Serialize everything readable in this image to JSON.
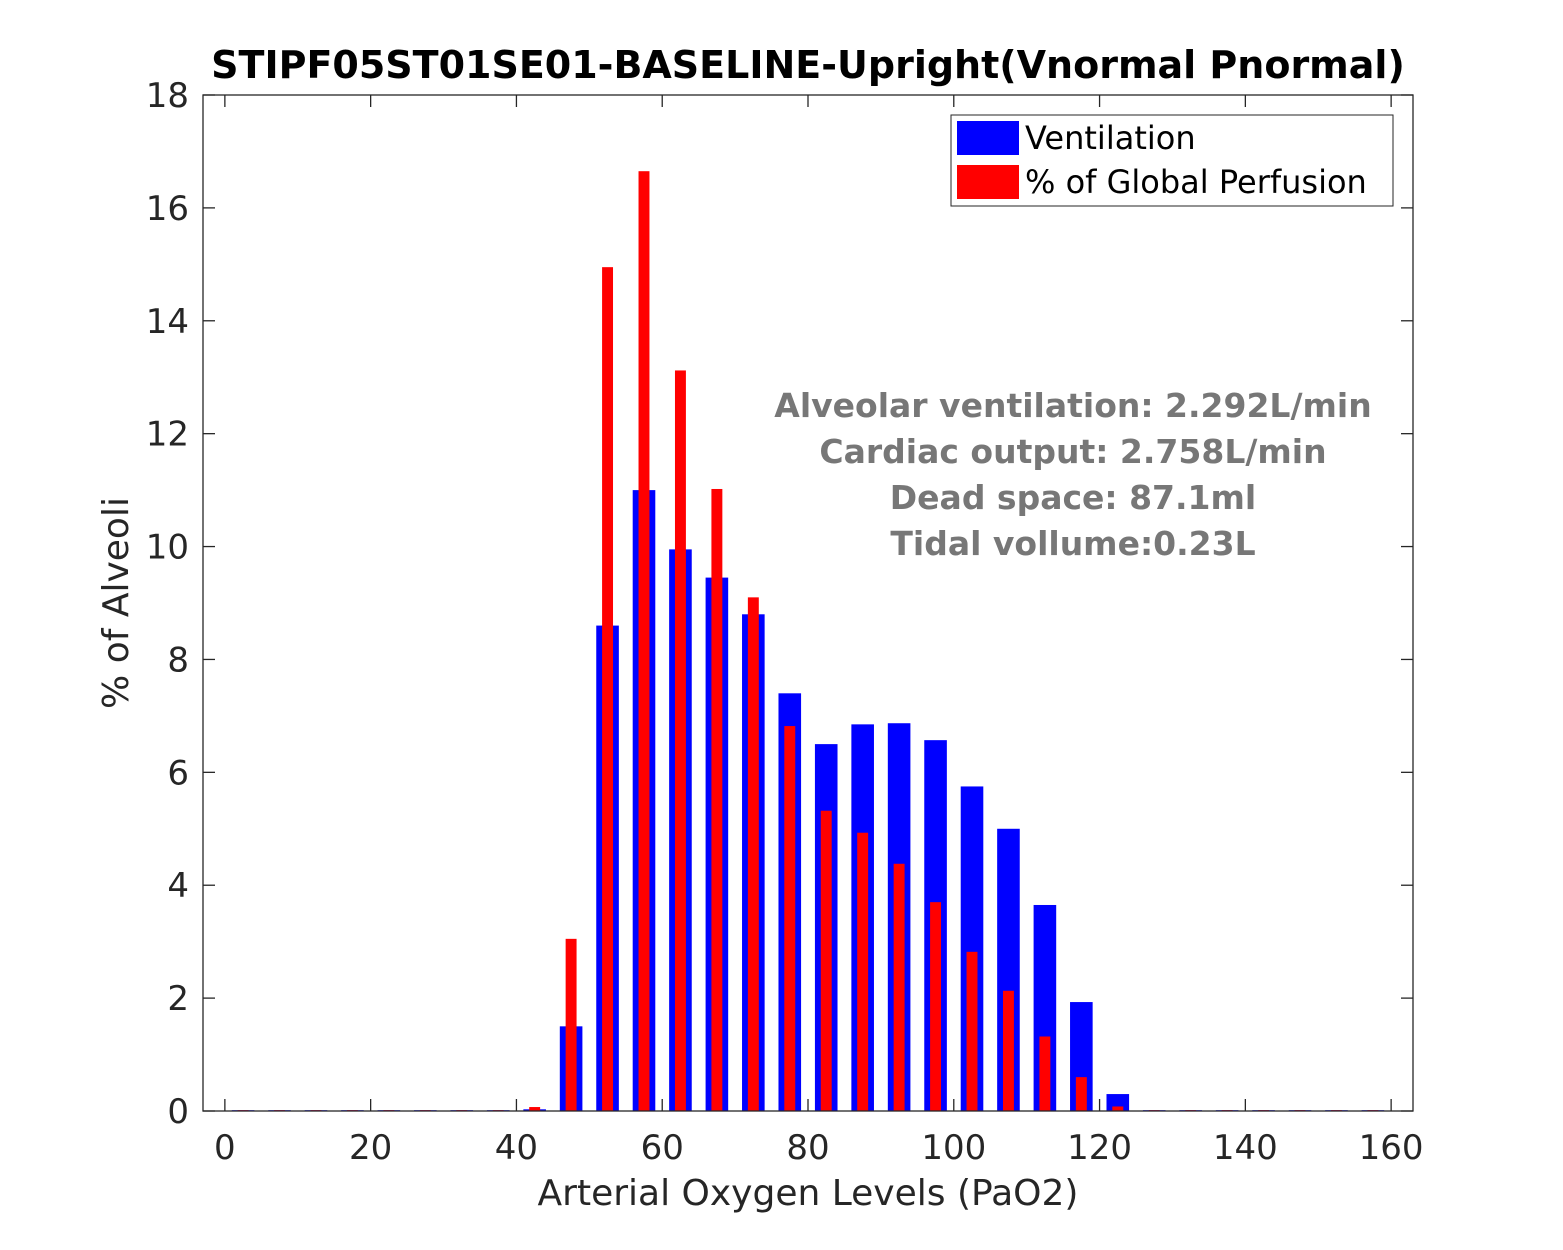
{
  "chart_data": {
    "type": "bar",
    "title": "STIPF05ST01SE01-BASELINE-Upright(Vnormal Pnormal)",
    "xlabel": "Arterial Oxygen Levels (PaO2)",
    "ylabel": "% of Alveoli",
    "xlim": [
      -3,
      163
    ],
    "ylim": [
      0,
      18
    ],
    "xticks": [
      0,
      20,
      40,
      60,
      80,
      100,
      120,
      140,
      160
    ],
    "yticks": [
      0,
      2,
      4,
      6,
      8,
      10,
      12,
      14,
      16,
      18
    ],
    "x": [
      2.5,
      7.5,
      12.5,
      17.5,
      22.5,
      27.5,
      32.5,
      37.5,
      42.5,
      47.5,
      52.5,
      57.5,
      62.5,
      67.5,
      72.5,
      77.5,
      82.5,
      87.5,
      92.5,
      97.5,
      102.5,
      107.5,
      112.5,
      117.5,
      122.5,
      127.5,
      132.5,
      137.5,
      142.5,
      147.5,
      152.5,
      157.5
    ],
    "series": [
      {
        "name": "Ventilation",
        "color": "#0000ff",
        "values": [
          0,
          0,
          0,
          0,
          0,
          0,
          0,
          0,
          0.03,
          1.5,
          8.6,
          11.0,
          9.95,
          9.45,
          8.8,
          7.4,
          6.5,
          6.85,
          6.87,
          6.57,
          5.75,
          5.0,
          3.65,
          1.93,
          0.3,
          0,
          0,
          0,
          0,
          0,
          0,
          0
        ]
      },
      {
        "name": "% of Global Perfusion",
        "color": "#ff0000",
        "values": [
          0,
          0,
          0,
          0,
          0,
          0,
          0,
          0,
          0.07,
          3.05,
          14.95,
          16.65,
          13.12,
          11.02,
          9.1,
          6.82,
          5.32,
          4.93,
          4.38,
          3.7,
          2.82,
          2.13,
          1.32,
          0.6,
          0.08,
          0,
          0,
          0,
          0,
          0,
          0,
          0
        ]
      }
    ],
    "legend_position": "top-right",
    "grid": false,
    "annotations": [
      "Alveolar ventilation: 2.292L/min",
      "Cardiac output: 2.758L/min",
      "Dead space: 87.1ml",
      "Tidal vollume:0.23L"
    ]
  }
}
